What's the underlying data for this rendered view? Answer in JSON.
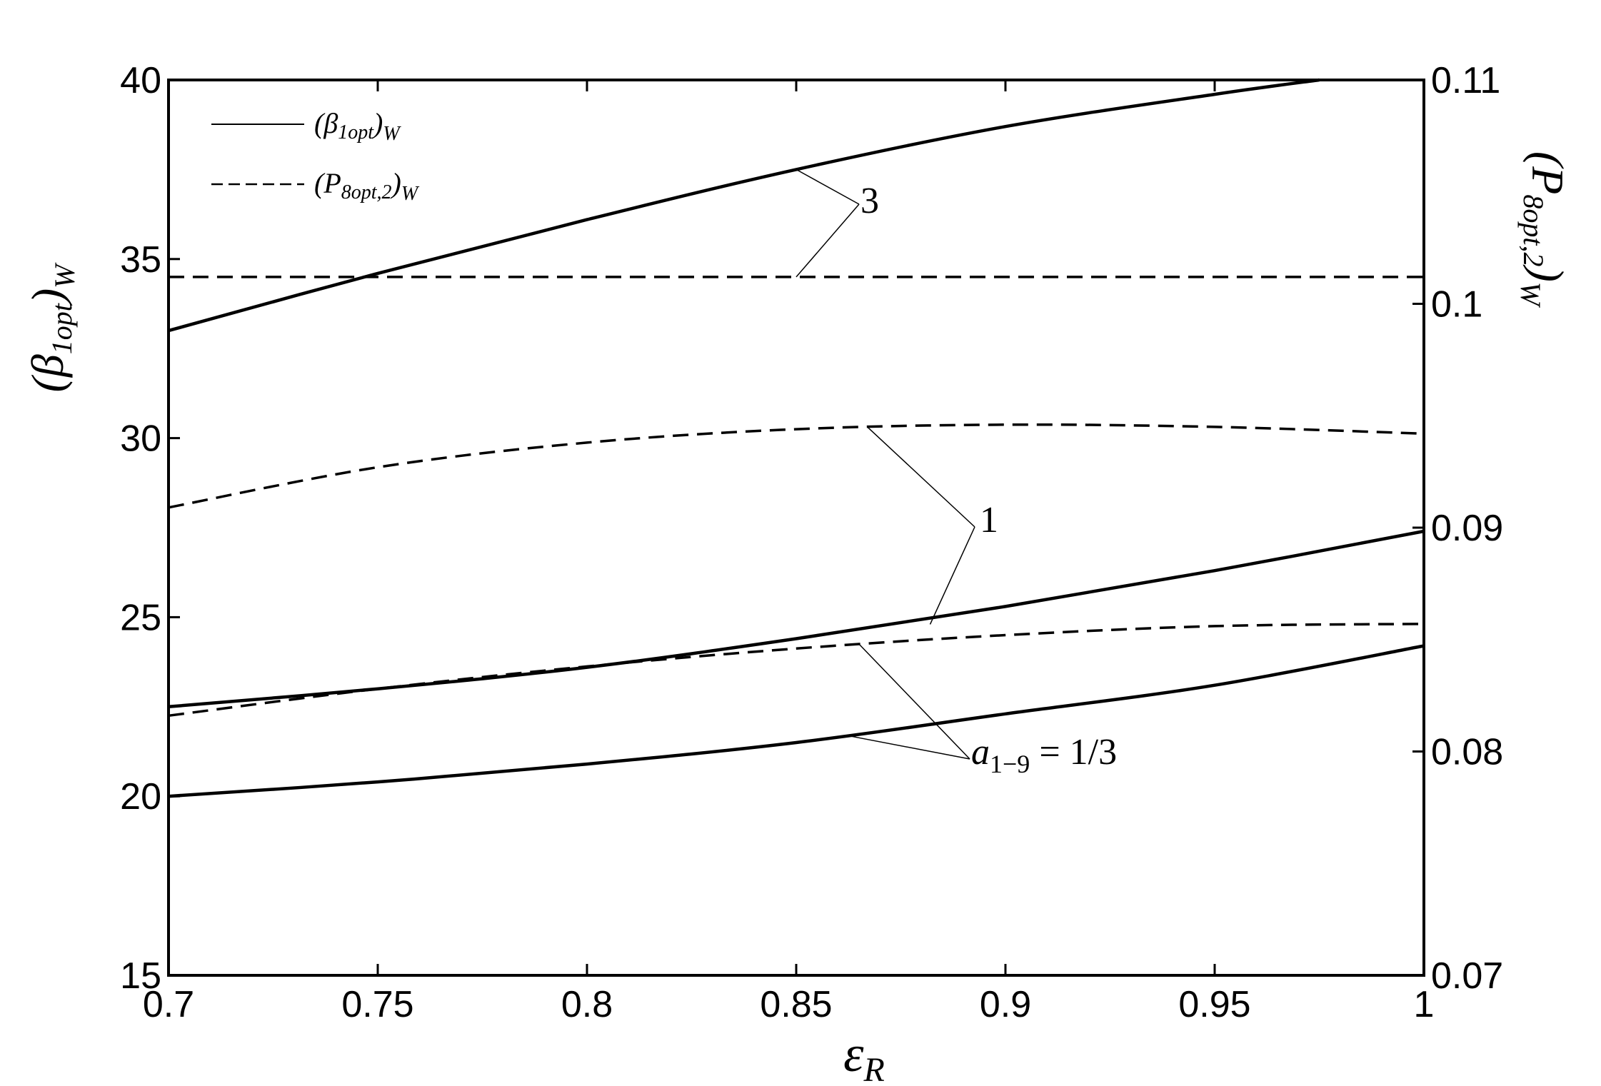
{
  "chart_data": {
    "type": "line",
    "xlabel": "εR",
    "ylabel": "(β1opt)W",
    "y2label": "(P8opt,2)W",
    "xlim": [
      0.7,
      1.0
    ],
    "ylim": [
      15,
      40
    ],
    "y2lim": [
      0.07,
      0.11
    ],
    "x_ticks": [
      "0.7",
      "0.75",
      "0.8",
      "0.85",
      "0.9",
      "0.95",
      "1"
    ],
    "y_ticks": [
      "15",
      "20",
      "25",
      "30",
      "35",
      "40"
    ],
    "y2_ticks": [
      "0.07",
      "0.08",
      "0.09",
      "0.1",
      "0.11"
    ],
    "grid": false,
    "legend": {
      "position": "top-left",
      "entries": [
        {
          "label": "(β1opt)W",
          "style": "solid"
        },
        {
          "label": "(P8opt,2)W",
          "style": "dashed"
        }
      ]
    },
    "series": [
      {
        "group": "3",
        "style": "solid",
        "axis": "left",
        "x": [
          0.7,
          0.75,
          0.8,
          0.85,
          0.9,
          0.95,
          0.975
        ],
        "values": [
          33.0,
          34.6,
          36.1,
          37.5,
          38.7,
          39.6,
          40.0
        ]
      },
      {
        "group": "3",
        "style": "dashed",
        "axis": "right",
        "x": [
          0.7,
          0.75,
          0.8,
          0.85,
          0.9,
          0.95,
          1.0
        ],
        "values": [
          0.1012,
          0.1012,
          0.1012,
          0.1012,
          0.1012,
          0.1012,
          0.1012
        ]
      },
      {
        "group": "1",
        "style": "dashed",
        "axis": "right",
        "x": [
          0.7,
          0.75,
          0.8,
          0.85,
          0.9,
          0.95,
          1.0
        ],
        "values": [
          0.0909,
          0.0927,
          0.0938,
          0.0944,
          0.0946,
          0.0945,
          0.0942
        ]
      },
      {
        "group": "1",
        "style": "solid",
        "axis": "left",
        "x": [
          0.7,
          0.75,
          0.8,
          0.85,
          0.9,
          0.95,
          1.0
        ],
        "values": [
          22.5,
          23.0,
          23.6,
          24.4,
          25.3,
          26.3,
          27.4
        ]
      },
      {
        "group": "a1-9 = 1/3",
        "style": "dashed",
        "axis": "right",
        "x": [
          0.7,
          0.75,
          0.8,
          0.85,
          0.9,
          0.95,
          1.0
        ],
        "values": [
          0.0816,
          0.0828,
          0.0838,
          0.0846,
          0.0852,
          0.0856,
          0.0857
        ]
      },
      {
        "group": "a1-9 = 1/3",
        "style": "solid",
        "axis": "left",
        "x": [
          0.7,
          0.75,
          0.8,
          0.85,
          0.9,
          0.95,
          1.0
        ],
        "values": [
          20.0,
          20.4,
          20.9,
          21.5,
          22.3,
          23.1,
          24.2
        ]
      }
    ],
    "annotations": [
      {
        "label": "3",
        "targets": [
          {
            "x": 0.85,
            "y": 37.5,
            "axis": "left"
          },
          {
            "x": 0.85,
            "y": 0.1012,
            "axis": "right"
          }
        ]
      },
      {
        "label": "1",
        "targets": [
          {
            "x": 0.867,
            "y": 0.0945,
            "axis": "right"
          },
          {
            "x": 0.882,
            "y": 24.8,
            "axis": "left"
          }
        ]
      },
      {
        "label": "a1−9 = 1/3",
        "targets": [
          {
            "x": 0.865,
            "y": 0.0848,
            "axis": "right"
          },
          {
            "x": 0.862,
            "y": 21.7,
            "axis": "left"
          }
        ]
      }
    ]
  }
}
